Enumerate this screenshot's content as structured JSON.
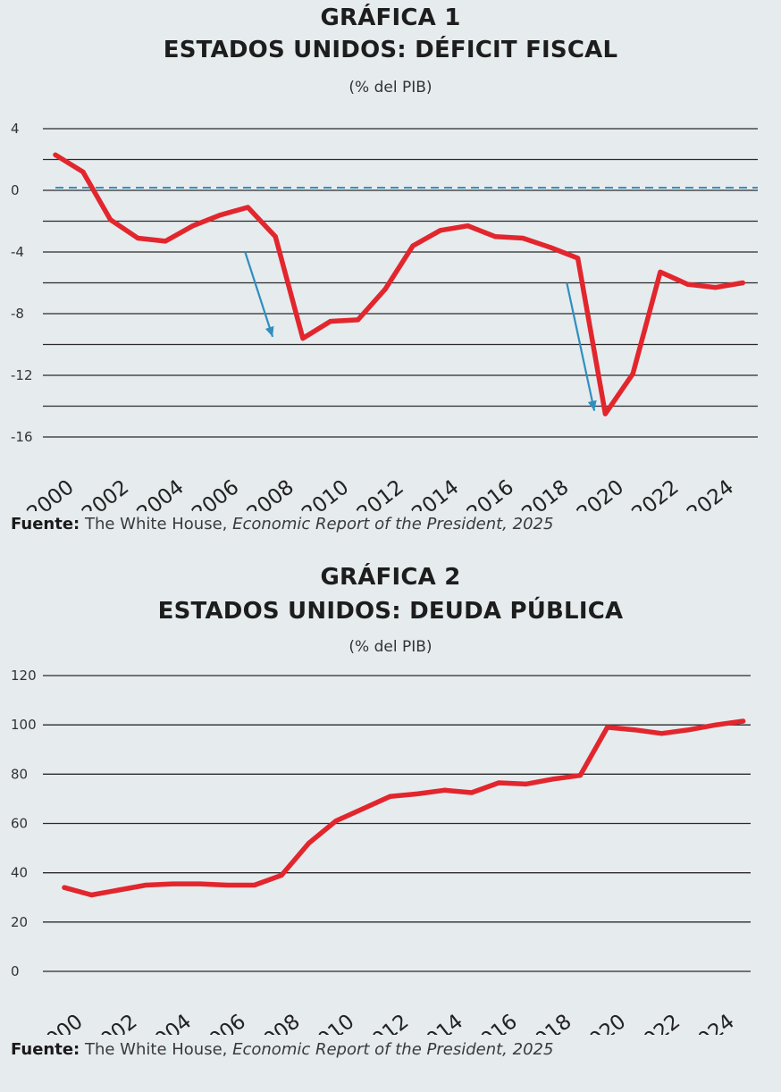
{
  "chart_data": [
    {
      "type": "line",
      "title_line1": "GRÁFICA 1",
      "title_line2": "ESTADOS UNIDOS: DÉFICIT FISCAL",
      "subtitle": "(% del PIB)",
      "ylim": [
        -16,
        4
      ],
      "yticks": [
        4,
        0,
        -4,
        -8,
        -12,
        -16
      ],
      "gridlines": [
        4,
        2,
        0,
        -2,
        -4,
        -6,
        -8,
        -10,
        -12,
        -14,
        -16
      ],
      "reference_line": 0,
      "xlim": [
        2000,
        2026
      ],
      "xticks": [
        "2000",
        "2002",
        "2004",
        "2006",
        "2008",
        "2010",
        "2012",
        "2014",
        "2016",
        "2018",
        "2020",
        "2022",
        "2024"
      ],
      "x": [
        2000,
        2001,
        2002,
        2003,
        2004,
        2005,
        2006,
        2007,
        2008,
        2009,
        2010,
        2011,
        2012,
        2013,
        2014,
        2015,
        2016,
        2017,
        2018,
        2019,
        2020,
        2021,
        2022,
        2023,
        2024,
        2025
      ],
      "values": [
        2.3,
        1.2,
        -1.9,
        -3.1,
        -3.3,
        -2.3,
        -1.6,
        -1.1,
        -3.0,
        -9.6,
        -8.5,
        -8.4,
        -6.4,
        -3.6,
        -2.6,
        -2.3,
        -3.0,
        -3.1,
        -3.7,
        -4.4,
        -14.5,
        -11.9,
        -5.3,
        -6.1,
        -6.3,
        -6.0
      ],
      "arrows": [
        {
          "from": [
            2006.9,
            -4.0
          ],
          "to": [
            2007.9,
            -9.5
          ]
        },
        {
          "from": [
            2018.6,
            -6.0
          ],
          "to": [
            2019.6,
            -14.3
          ]
        }
      ],
      "source_label": "Fuente:",
      "source_text": "The White House,",
      "source_publication": "Economic Report of the President, 2025",
      "colors": {
        "line": "#e2262d",
        "grid": "#2b2b2b",
        "reference": "#3b8fbc",
        "arrow": "#2f8fbf"
      }
    },
    {
      "type": "line",
      "title_line1": "GRÁFICA 2",
      "title_line2": "ESTADOS UNIDOS: DEUDA PÚBLICA",
      "subtitle": "(% del PIB)",
      "ylim": [
        0,
        120
      ],
      "yticks": [
        120,
        100,
        80,
        60,
        40,
        20,
        0
      ],
      "gridlines": [
        120,
        100,
        80,
        60,
        40,
        20,
        0
      ],
      "xlim": [
        2000,
        2026
      ],
      "xticks": [
        "2000",
        "2002",
        "2004",
        "2006",
        "2008",
        "2010",
        "2012",
        "2014",
        "2016",
        "2018",
        "2020",
        "2022",
        "2024"
      ],
      "x": [
        2000,
        2001,
        2002,
        2003,
        2004,
        2005,
        2006,
        2007,
        2008,
        2009,
        2010,
        2011,
        2012,
        2013,
        2014,
        2015,
        2016,
        2017,
        2018,
        2019,
        2020,
        2021,
        2022,
        2023,
        2024,
        2025
      ],
      "values": [
        34,
        31,
        33,
        35,
        35.5,
        35.5,
        35,
        35,
        39,
        52,
        61,
        66,
        71,
        72,
        73.5,
        72.5,
        76.5,
        76,
        78,
        79.5,
        99,
        98,
        96.5,
        98,
        100,
        101.5
      ],
      "source_label": "Fuente:",
      "source_text": "The White House,",
      "source_publication": "Economic Report of the President, 2025",
      "colors": {
        "line": "#e2262d",
        "grid": "#2b2b2b"
      }
    }
  ]
}
